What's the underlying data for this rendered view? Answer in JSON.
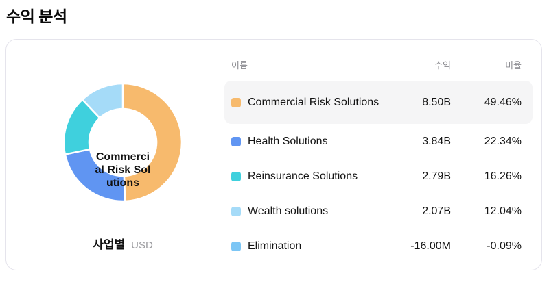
{
  "page": {
    "title": "수익 분석"
  },
  "card": {
    "chart": {
      "center_label_lines": [
        "Commerci",
        "al Risk Sol",
        "utions"
      ],
      "footer": {
        "group_label": "사업별",
        "currency": "USD"
      }
    },
    "table": {
      "headers": {
        "name": "이름",
        "revenue": "수익",
        "ratio": "비율"
      },
      "rows": [
        {
          "name": "Commercial Risk Solutions",
          "revenue": "8.50B",
          "ratio": "49.46%",
          "color": "#f7ba6d",
          "highlighted": true
        },
        {
          "name": "Health Solutions",
          "revenue": "3.84B",
          "ratio": "22.34%",
          "color": "#6095f2",
          "highlighted": false
        },
        {
          "name": "Reinsurance Solutions",
          "revenue": "2.79B",
          "ratio": "16.26%",
          "color": "#3fd0dd",
          "highlighted": false
        },
        {
          "name": "Wealth solutions",
          "revenue": "2.07B",
          "ratio": "12.04%",
          "color": "#a5dbf8",
          "highlighted": false
        },
        {
          "name": "Elimination",
          "revenue": "-16.00M",
          "ratio": "-0.09%",
          "color": "#7cc6f5",
          "highlighted": false
        }
      ]
    }
  },
  "chart_data": {
    "type": "pie",
    "donut": true,
    "title": "수익 분석",
    "unit": "USD",
    "group_by": "사업별",
    "center_label": "Commercial Risk Solutions",
    "categories": [
      "Commercial Risk Solutions",
      "Health Solutions",
      "Reinsurance Solutions",
      "Wealth solutions",
      "Elimination"
    ],
    "values_percent": [
      49.46,
      22.34,
      16.26,
      12.04,
      -0.09
    ],
    "values_revenue": [
      "8.50B",
      "3.84B",
      "2.79B",
      "2.07B",
      "-16.00M"
    ],
    "colors": [
      "#f7ba6d",
      "#6095f2",
      "#3fd0dd",
      "#a5dbf8",
      "#7cc6f5"
    ],
    "start_angle": "top",
    "direction": "clockwise"
  }
}
